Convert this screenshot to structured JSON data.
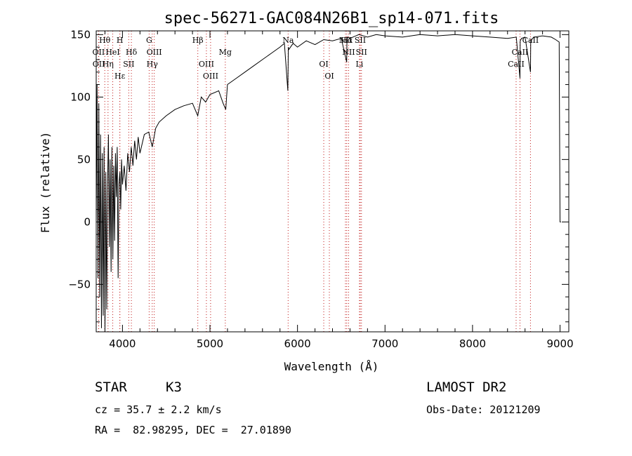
{
  "chart_data": {
    "type": "line",
    "title": "spec-56271-GAC084N26B1_sp14-071.fits",
    "xlabel": "Wavelength (Å)",
    "ylabel": "Flux (relative)",
    "xlim": [
      3700,
      9100
    ],
    "ylim": [
      -88,
      153
    ],
    "xticks": [
      4000,
      5000,
      6000,
      7000,
      8000,
      9000
    ],
    "yticks": [
      -50,
      0,
      50,
      100,
      150
    ],
    "xtick_labels": [
      "4000",
      "5000",
      "6000",
      "7000",
      "8000",
      "9000"
    ],
    "ytick_labels": [
      "−50",
      "0",
      "50",
      "100",
      "150"
    ],
    "grid": false,
    "series": [
      {
        "x": [
          3700,
          3710,
          3720,
          3730,
          3740,
          3750,
          3760,
          3770,
          3780,
          3790,
          3800,
          3810,
          3820,
          3830,
          3840,
          3850,
          3860,
          3870,
          3880,
          3890,
          3900,
          3910,
          3920,
          3930,
          3940,
          3950,
          3960,
          3970,
          3980,
          3990,
          4000,
          4020,
          4040,
          4060,
          4080,
          4100,
          4120,
          4140,
          4160,
          4180,
          4200,
          4250,
          4300,
          4340,
          4380,
          4420,
          4500,
          4600,
          4700,
          4800,
          4860,
          4900,
          4950,
          5000,
          5100,
          5150,
          5180,
          5200,
          5300,
          5400,
          5500,
          5600,
          5700,
          5800,
          5850,
          5890,
          5895,
          5900,
          5950,
          6000,
          6100,
          6200,
          6300,
          6400,
          6500,
          6562,
          6565,
          6570,
          6600,
          6700,
          6800,
          6900,
          7000,
          7200,
          7400,
          7600,
          7800,
          8000,
          8200,
          8400,
          8500,
          8542,
          8545,
          8560,
          8600,
          8662,
          8665,
          8700,
          8800,
          8900,
          8950,
          8990,
          9000,
          9010
        ],
        "y": [
          0,
          110,
          -45,
          95,
          -60,
          70,
          -85,
          55,
          -75,
          60,
          -88,
          40,
          -70,
          30,
          70,
          -20,
          50,
          -40,
          60,
          -30,
          45,
          -15,
          55,
          20,
          60,
          -45,
          30,
          40,
          10,
          50,
          30,
          45,
          25,
          55,
          40,
          60,
          45,
          65,
          50,
          68,
          55,
          70,
          72,
          60,
          75,
          80,
          85,
          90,
          93,
          95,
          85,
          100,
          96,
          102,
          105,
          95,
          90,
          110,
          115,
          120,
          125,
          130,
          135,
          140,
          143,
          105,
          140,
          138,
          143,
          140,
          145,
          142,
          146,
          145,
          147,
          128,
          146,
          148,
          147,
          150,
          148,
          150,
          149,
          148,
          150,
          149,
          150,
          149,
          148,
          147,
          148,
          115,
          145,
          147,
          148,
          120,
          145,
          148,
          149,
          148,
          146,
          144,
          0,
          0
        ]
      }
    ],
    "spectral_lines": [
      {
        "label": "Hθ",
        "wavelength": 3798,
        "row": 0
      },
      {
        "label": "H",
        "wavelength": 3970,
        "row": 0
      },
      {
        "label": "G",
        "wavelength": 4305,
        "row": 0
      },
      {
        "label": "Hβ",
        "wavelength": 4861,
        "row": 0
      },
      {
        "label": "Na",
        "wavelength": 5893,
        "row": 0
      },
      {
        "label": "NII",
        "wavelength": 6548,
        "row": 0
      },
      {
        "label": "Hα",
        "wavelength": 6563,
        "row": 0
      },
      {
        "label": "SII",
        "wavelength": 6717,
        "row": 0
      },
      {
        "label": "CaII",
        "wavelength": 8662,
        "row": 0
      },
      {
        "label": "OII",
        "wavelength": 3727,
        "row": 1
      },
      {
        "label": "HeI",
        "wavelength": 3889,
        "row": 1
      },
      {
        "label": "OIII",
        "wavelength": 4363,
        "row": 1
      },
      {
        "label": "Mg",
        "wavelength": 5175,
        "row": 1
      },
      {
        "label": "NII",
        "wavelength": 6584,
        "row": 1
      },
      {
        "label": "SII",
        "wavelength": 6731,
        "row": 1
      },
      {
        "label": "CaII",
        "wavelength": 8542,
        "row": 1
      },
      {
        "label": "OII",
        "wavelength": 3729,
        "row": 2
      },
      {
        "label": "Hη",
        "wavelength": 3835,
        "row": 2
      },
      {
        "label": "SII",
        "wavelength": 4072,
        "row": 2
      },
      {
        "label": "Hγ",
        "wavelength": 4340,
        "row": 2
      },
      {
        "label": "OIII",
        "wavelength": 4959,
        "row": 2
      },
      {
        "label": "OI",
        "wavelength": 6300,
        "row": 2
      },
      {
        "label": "Li",
        "wavelength": 6708,
        "row": 2
      },
      {
        "label": "CaII",
        "wavelength": 8498,
        "row": 2
      },
      {
        "label": "Hδ",
        "wavelength": 4102,
        "row": 1
      },
      {
        "label": "Hε",
        "wavelength": 3970,
        "row": 3
      },
      {
        "label": "OIII",
        "wavelength": 5007,
        "row": 3
      },
      {
        "label": "OI",
        "wavelength": 6364,
        "row": 3
      }
    ]
  },
  "info": {
    "object_class": "STAR",
    "subclass": "K3",
    "survey": "LAMOST DR2",
    "cz": "cz = 35.7 ± 2.2 km/s",
    "obs_date": "Obs-Date: 20121209",
    "coords": "RA =  82.98295, DEC =  27.01890"
  }
}
